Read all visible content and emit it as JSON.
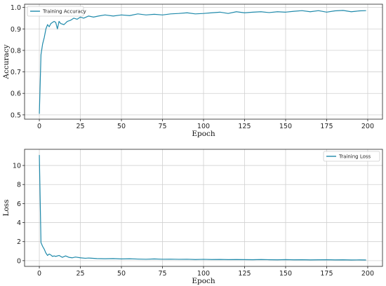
{
  "series_color": "#1f8aab",
  "chart_data": [
    {
      "type": "line",
      "xlabel": "Epoch",
      "ylabel": "Accuracy",
      "xlim": [
        -9,
        209
      ],
      "ylim": [
        0.48,
        1.015
      ],
      "x_ticks": [
        0,
        25,
        50,
        75,
        100,
        125,
        150,
        175,
        200
      ],
      "x_tick_labels": [
        "0",
        "25",
        "50",
        "75",
        "100",
        "125",
        "150",
        "175",
        "200"
      ],
      "y_ticks": [
        0.5,
        0.6,
        0.7,
        0.8,
        0.9,
        1.0
      ],
      "y_tick_labels": [
        "0.5",
        "0.6",
        "0.7",
        "0.8",
        "0.9",
        "1.0"
      ],
      "grid": true,
      "legend": "upper-left",
      "series": [
        {
          "name": "Training Accuracy",
          "x": [
            0,
            1,
            2,
            3,
            4,
            5,
            6,
            7,
            8,
            9,
            10,
            11,
            12,
            13,
            15,
            17,
            19,
            21,
            23,
            25,
            27,
            30,
            33,
            36,
            40,
            45,
            50,
            55,
            60,
            65,
            70,
            75,
            80,
            85,
            90,
            95,
            100,
            105,
            110,
            115,
            120,
            125,
            130,
            135,
            140,
            145,
            150,
            155,
            160,
            165,
            170,
            175,
            180,
            185,
            190,
            195,
            199
          ],
          "values": [
            0.505,
            0.78,
            0.83,
            0.86,
            0.9,
            0.92,
            0.91,
            0.925,
            0.93,
            0.935,
            0.93,
            0.9,
            0.935,
            0.925,
            0.92,
            0.935,
            0.94,
            0.95,
            0.945,
            0.955,
            0.95,
            0.96,
            0.955,
            0.96,
            0.965,
            0.96,
            0.965,
            0.962,
            0.97,
            0.965,
            0.968,
            0.965,
            0.97,
            0.972,
            0.975,
            0.97,
            0.972,
            0.975,
            0.978,
            0.972,
            0.98,
            0.975,
            0.978,
            0.98,
            0.976,
            0.98,
            0.978,
            0.982,
            0.985,
            0.98,
            0.985,
            0.978,
            0.984,
            0.986,
            0.98,
            0.984,
            0.985
          ]
        }
      ]
    },
    {
      "type": "line",
      "xlabel": "Epoch",
      "ylabel": "Loss",
      "xlim": [
        -9,
        209
      ],
      "ylim": [
        -0.6,
        11.7
      ],
      "x_ticks": [
        0,
        25,
        50,
        75,
        100,
        125,
        150,
        175,
        200
      ],
      "x_tick_labels": [
        "0",
        "25",
        "50",
        "75",
        "100",
        "125",
        "150",
        "175",
        "200"
      ],
      "y_ticks": [
        0,
        2,
        4,
        6,
        8,
        10
      ],
      "y_tick_labels": [
        "0",
        "2",
        "4",
        "6",
        "8",
        "10"
      ],
      "grid": true,
      "legend": "upper-right",
      "series": [
        {
          "name": "Training Loss",
          "x": [
            0,
            1,
            2,
            3,
            4,
            5,
            6,
            7,
            8,
            9,
            10,
            12,
            14,
            16,
            18,
            20,
            22,
            25,
            28,
            30,
            35,
            40,
            45,
            50,
            55,
            60,
            65,
            70,
            75,
            80,
            85,
            90,
            95,
            100,
            105,
            110,
            115,
            120,
            125,
            130,
            135,
            140,
            145,
            150,
            155,
            160,
            165,
            170,
            175,
            180,
            185,
            190,
            195,
            199
          ],
          "values": [
            11.1,
            1.9,
            1.5,
            1.2,
            0.8,
            0.55,
            0.7,
            0.6,
            0.45,
            0.5,
            0.45,
            0.55,
            0.35,
            0.5,
            0.35,
            0.3,
            0.38,
            0.3,
            0.25,
            0.28,
            0.22,
            0.2,
            0.22,
            0.18,
            0.2,
            0.17,
            0.15,
            0.18,
            0.15,
            0.16,
            0.14,
            0.15,
            0.12,
            0.14,
            0.12,
            0.13,
            0.11,
            0.12,
            0.11,
            0.1,
            0.12,
            0.1,
            0.09,
            0.11,
            0.09,
            0.1,
            0.08,
            0.09,
            0.1,
            0.08,
            0.09,
            0.07,
            0.08,
            0.07
          ]
        }
      ]
    }
  ]
}
